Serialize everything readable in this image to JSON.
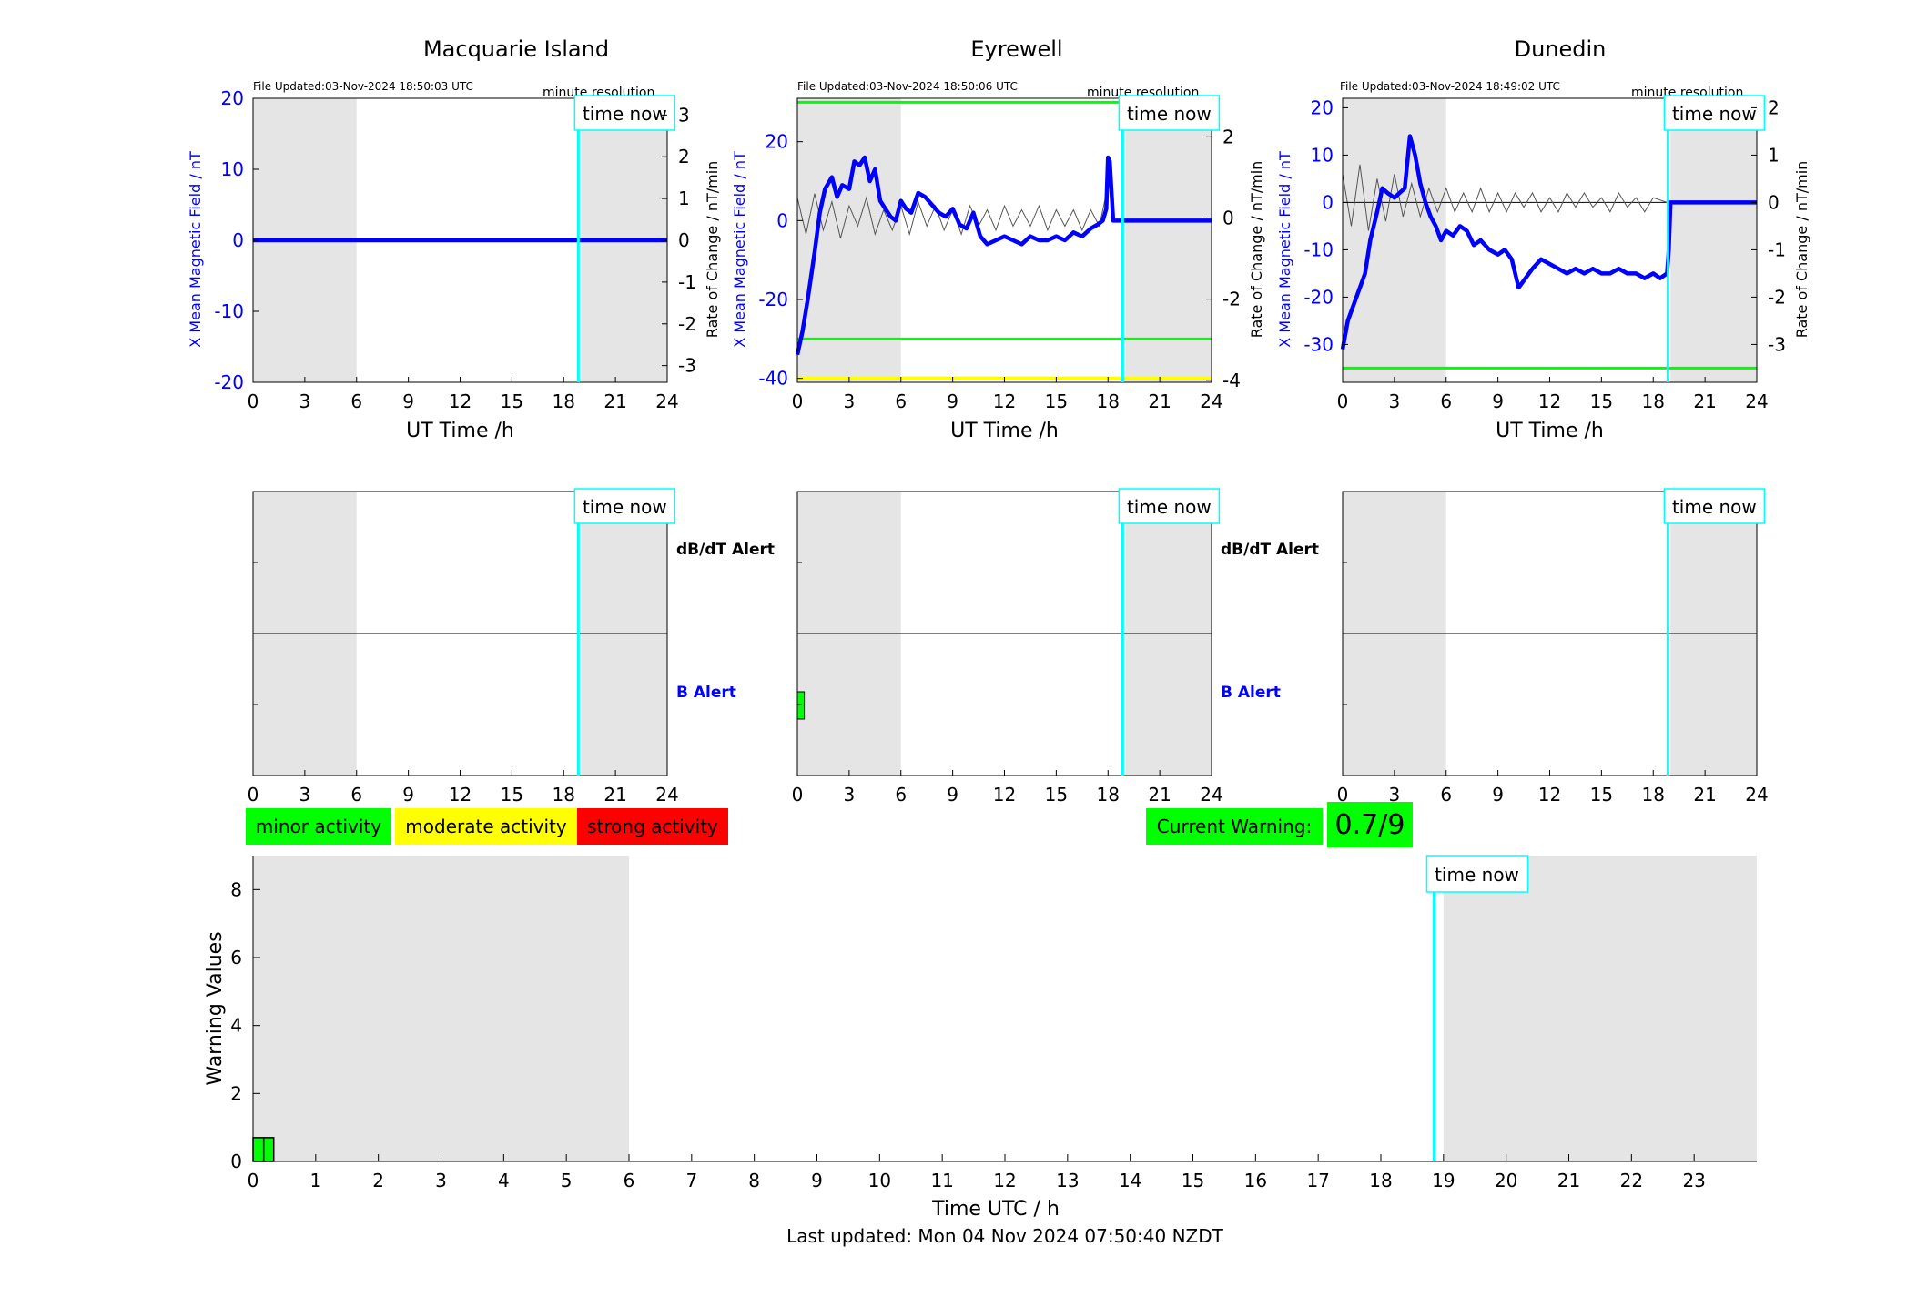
{
  "footer": "Last updated: Mon 04 Nov 2024 07:50:40 NZDT",
  "legend": {
    "minor": "minor activity",
    "moderate": "moderate activity",
    "strong": "strong activity",
    "colors": {
      "minor": "#00ff00",
      "moderate": "#ffff00",
      "strong": "#ff0000"
    }
  },
  "current_warning": {
    "label": "Current Warning:",
    "value": "0.7/9",
    "color": "#00ff00"
  },
  "labels": {
    "time_now": "time now",
    "minute_resolution": "minute resolution",
    "dbdt_alert": "dB/dT Alert",
    "b_alert": "B Alert",
    "x_label": "UT Time /h",
    "y_left": "X Mean Magnetic Field / nT",
    "y_right": "Rate of Change / nT/min"
  },
  "colors": {
    "field": "#0000ff",
    "rate": "#000000",
    "time_now": "#00ffff",
    "night_shade": "#e5e5e5",
    "threshold_green": "#00ff00",
    "threshold_yellow": "#ffff00"
  },
  "chart_data": [
    {
      "type": "line",
      "title": "Macquarie Island",
      "file_updated": "File Updated:03-Nov-2024 18:50:03 UTC",
      "xlabel": "UT Time /h",
      "ylabel": "X Mean Magnetic Field / nT",
      "ylabel_right": "Rate of Change / nT/min",
      "xlim": [
        0,
        24
      ],
      "x_ticks": [
        0,
        3,
        6,
        9,
        12,
        15,
        18,
        21,
        24
      ],
      "ylim": [
        -20,
        20
      ],
      "y_ticks": [
        -20,
        -10,
        0,
        10,
        20
      ],
      "ylim_right": [
        -3.4,
        3.4
      ],
      "y_ticks_right": [
        -3,
        -2,
        -1,
        0,
        1,
        2,
        3
      ],
      "shaded_hours": [
        [
          0,
          6
        ],
        [
          19,
          24
        ]
      ],
      "time_now": 18.85,
      "thresholds_green": [],
      "thresholds_yellow": [],
      "series": [
        {
          "values_x": [
            0,
            24
          ],
          "values_y": [
            0,
            0
          ]
        }
      ],
      "rate_series": []
    },
    {
      "type": "line",
      "title": "Eyrewell",
      "file_updated": "File Updated:03-Nov-2024 18:50:06 UTC",
      "xlabel": "UT Time /h",
      "ylabel": "X Mean Magnetic Field / nT",
      "ylabel_right": "Rate of Change / nT/min",
      "xlim": [
        0,
        24
      ],
      "x_ticks": [
        0,
        3,
        6,
        9,
        12,
        15,
        18,
        21,
        24
      ],
      "ylim": [
        -41,
        31
      ],
      "y_ticks": [
        -40,
        -20,
        0,
        20
      ],
      "ylim_right": [
        -4.05,
        2.95
      ],
      "y_ticks_right": [
        -4,
        -2,
        0,
        2
      ],
      "shaded_hours": [
        [
          0,
          6
        ],
        [
          19,
          24
        ]
      ],
      "time_now": 18.85,
      "thresholds_green": [
        30,
        -30
      ],
      "thresholds_yellow": [
        -40
      ],
      "series": [
        {
          "values_x": [
            0,
            0.3,
            0.6,
            1.0,
            1.3,
            1.6,
            2.0,
            2.3,
            2.6,
            3.0,
            3.3,
            3.6,
            3.9,
            4.2,
            4.5,
            4.8,
            5.1,
            5.4,
            5.7,
            6.0,
            6.3,
            6.6,
            7.0,
            7.4,
            7.8,
            8.2,
            8.6,
            9.0,
            9.4,
            9.8,
            10.2,
            10.6,
            11.0,
            11.5,
            12.0,
            12.5,
            13.0,
            13.5,
            14.0,
            14.5,
            15.0,
            15.5,
            16.0,
            16.5,
            17.0,
            17.4,
            17.7,
            17.9,
            18.0,
            18.1,
            18.3,
            24
          ],
          "values_y": [
            -34,
            -28,
            -20,
            -8,
            2,
            8,
            11,
            6,
            9,
            8,
            15,
            14,
            16,
            10,
            13,
            5,
            3,
            1,
            0,
            5,
            3,
            2,
            7,
            6,
            4,
            2,
            1,
            3,
            -1,
            -2,
            2,
            -4,
            -6,
            -5,
            -4,
            -5,
            -6,
            -4,
            -5,
            -5,
            -4,
            -5,
            -3,
            -4,
            -2,
            -1,
            0,
            3,
            16,
            15,
            0,
            0
          ]
        }
      ],
      "rate_series": [
        {
          "values_x": [
            0,
            0.5,
            1,
            1.5,
            2,
            2.5,
            3,
            3.5,
            4,
            4.5,
            5,
            5.5,
            6,
            6.5,
            7,
            7.5,
            8,
            8.5,
            9,
            9.5,
            10,
            10.5,
            11,
            11.5,
            12,
            12.5,
            13,
            13.5,
            14,
            14.5,
            15,
            15.5,
            16,
            16.5,
            17,
            17.5,
            18
          ],
          "values_y": [
            0.5,
            -0.4,
            0.6,
            -0.3,
            0.4,
            -0.5,
            0.3,
            -0.2,
            0.5,
            -0.4,
            0.2,
            -0.3,
            0.3,
            -0.4,
            0.4,
            -0.2,
            0.3,
            -0.3,
            0.2,
            -0.4,
            0.3,
            -0.2,
            0.2,
            -0.3,
            0.3,
            -0.2,
            0.2,
            -0.2,
            0.3,
            -0.3,
            0.2,
            -0.2,
            0.2,
            -0.3,
            0.2,
            -0.2,
            0.8
          ]
        }
      ]
    },
    {
      "type": "line",
      "title": "Dunedin",
      "file_updated": "File Updated:03-Nov-2024 18:49:02 UTC",
      "xlabel": "UT Time /h",
      "ylabel": "X Mean Magnetic Field / nT",
      "ylabel_right": "Rate of Change / nT/min",
      "xlim": [
        0,
        24
      ],
      "x_ticks": [
        0,
        3,
        6,
        9,
        12,
        15,
        18,
        21,
        24
      ],
      "ylim": [
        -38,
        22
      ],
      "y_ticks": [
        -30,
        -20,
        -10,
        0,
        10,
        20
      ],
      "ylim_right": [
        -3.8,
        2.2
      ],
      "y_ticks_right": [
        -3,
        -2,
        -1,
        0,
        1,
        2
      ],
      "shaded_hours": [
        [
          0,
          6
        ],
        [
          19,
          24
        ]
      ],
      "time_now": 18.85,
      "thresholds_green": [
        -35
      ],
      "thresholds_yellow": [],
      "series": [
        {
          "values_x": [
            0,
            0.3,
            0.6,
            1.0,
            1.3,
            1.6,
            2.0,
            2.3,
            2.6,
            3.0,
            3.3,
            3.6,
            3.9,
            4.2,
            4.5,
            4.8,
            5.1,
            5.4,
            5.7,
            6.0,
            6.4,
            6.8,
            7.2,
            7.6,
            8.0,
            8.5,
            9.0,
            9.4,
            9.8,
            10.2,
            10.6,
            11.0,
            11.5,
            12.0,
            12.5,
            13.0,
            13.5,
            14.0,
            14.5,
            15.0,
            15.5,
            16.0,
            16.5,
            17.0,
            17.5,
            18.0,
            18.4,
            18.8,
            18.9,
            19.0,
            24
          ],
          "values_y": [
            -31,
            -25,
            -22,
            -18,
            -15,
            -8,
            -2,
            3,
            2,
            1,
            2,
            3,
            14,
            10,
            4,
            0,
            -3,
            -5,
            -8,
            -6,
            -7,
            -5,
            -6,
            -9,
            -8,
            -10,
            -11,
            -10,
            -12,
            -18,
            -16,
            -14,
            -12,
            -13,
            -14,
            -15,
            -14,
            -15,
            -14,
            -15,
            -15,
            -14,
            -15,
            -15,
            -16,
            -15,
            -16,
            -15,
            -10,
            0,
            0
          ]
        }
      ],
      "rate_series": [
        {
          "values_x": [
            0,
            0.5,
            1,
            1.5,
            2,
            2.5,
            3,
            3.5,
            4,
            4.5,
            5,
            5.5,
            6,
            6.5,
            7,
            7.5,
            8,
            8.5,
            9,
            9.5,
            10,
            10.5,
            11,
            11.5,
            12,
            12.5,
            13,
            13.5,
            14,
            14.5,
            15,
            15.5,
            16,
            16.5,
            17,
            17.5,
            18,
            18.8
          ],
          "values_y": [
            0.6,
            -0.5,
            0.8,
            -0.6,
            0.5,
            -0.4,
            0.6,
            -0.3,
            0.4,
            -0.3,
            0.3,
            -0.2,
            0.3,
            -0.2,
            0.2,
            -0.2,
            0.3,
            -0.2,
            0.2,
            -0.2,
            0.2,
            -0.1,
            0.2,
            -0.2,
            0.1,
            -0.2,
            0.2,
            -0.1,
            0.2,
            -0.1,
            0.1,
            -0.2,
            0.2,
            -0.1,
            0.1,
            -0.2,
            0.1,
            0
          ]
        }
      ]
    },
    {
      "type": "bar",
      "title": "",
      "panel": "alert",
      "xlabel": "",
      "xlim": [
        0,
        24
      ],
      "x_ticks": [
        0,
        3,
        6,
        9,
        12,
        15,
        18,
        21,
        24
      ],
      "shaded_hours": [
        [
          0,
          6
        ],
        [
          19,
          24
        ]
      ],
      "time_now": 18.85,
      "row_labels": [
        "dB/dT Alert",
        "B Alert"
      ],
      "b_alert_bars": []
    },
    {
      "type": "bar",
      "title": "",
      "panel": "alert",
      "xlabel": "",
      "xlim": [
        0,
        24
      ],
      "x_ticks": [
        0,
        3,
        6,
        9,
        12,
        15,
        18,
        21,
        24
      ],
      "shaded_hours": [
        [
          0,
          6
        ],
        [
          19,
          24
        ]
      ],
      "time_now": 18.85,
      "row_labels": [
        "dB/dT Alert",
        "B Alert"
      ],
      "b_alert_bars": [
        {
          "start": 0,
          "end": 0.4,
          "level": "minor"
        }
      ]
    },
    {
      "type": "bar",
      "title": "",
      "panel": "alert",
      "xlabel": "",
      "xlim": [
        0,
        24
      ],
      "x_ticks": [
        0,
        3,
        6,
        9,
        12,
        15,
        18,
        21,
        24
      ],
      "shaded_hours": [
        [
          0,
          6
        ],
        [
          19,
          24
        ]
      ],
      "time_now": 18.85,
      "row_labels": [],
      "b_alert_bars": []
    },
    {
      "type": "bar",
      "title": "",
      "xlabel": "Time UTC / h",
      "ylabel": "Warning Values",
      "xlim": [
        0,
        24
      ],
      "x_ticks": [
        0,
        1,
        2,
        3,
        4,
        5,
        6,
        7,
        8,
        9,
        10,
        11,
        12,
        13,
        14,
        15,
        16,
        17,
        18,
        19,
        20,
        21,
        22,
        23
      ],
      "ylim": [
        0,
        9
      ],
      "y_ticks": [
        0,
        2,
        4,
        6,
        8
      ],
      "shaded_hours": [
        [
          0,
          6
        ],
        [
          19,
          24
        ]
      ],
      "time_now": 18.85,
      "bars": [
        {
          "start": 0,
          "end": 0.17,
          "value": 0.7
        },
        {
          "start": 0.17,
          "end": 0.33,
          "value": 0.7
        }
      ]
    }
  ]
}
